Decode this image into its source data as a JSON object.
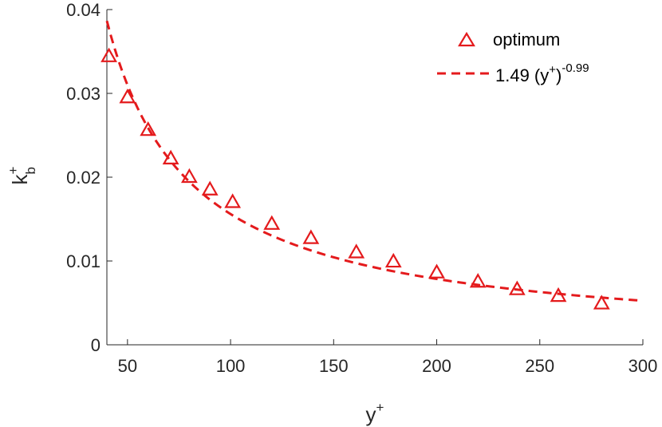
{
  "chart_data": {
    "type": "scatter",
    "xlabel": {
      "base": "y",
      "sup": "+"
    },
    "ylabel": {
      "base": "k",
      "sup": "+",
      "sub": "b"
    },
    "xlim": [
      40,
      300
    ],
    "ylim": [
      0,
      0.04
    ],
    "x_ticks": [
      50,
      100,
      150,
      200,
      250,
      300
    ],
    "y_ticks": [
      0,
      0.01,
      0.02,
      0.03,
      0.04
    ],
    "x_tick_labels": [
      "50",
      "100",
      "150",
      "200",
      "250",
      "300"
    ],
    "y_tick_labels": [
      "0",
      "0.01",
      "0.02",
      "0.03",
      "0.04"
    ],
    "grid": false,
    "legend_position": "top-right",
    "colors": {
      "series": "#e41a1c",
      "axis": "#262626"
    },
    "series": [
      {
        "name": "optimum",
        "style": "triangle-markers",
        "x": [
          41,
          50,
          60,
          71,
          80,
          90,
          101,
          120,
          139,
          161,
          179,
          200,
          220,
          239,
          259,
          280
        ],
        "y": [
          0.0344,
          0.0295,
          0.0256,
          0.0222,
          0.02,
          0.0185,
          0.017,
          0.0144,
          0.0127,
          0.011,
          0.0099,
          0.0086,
          0.0075,
          0.0066,
          0.0058,
          0.0049
        ]
      },
      {
        "name": "1.49 (y+)-0.99",
        "label_parts": {
          "coef": "1.49 (y",
          "sup1": "+",
          "close": ")",
          "sup2": "-0.99"
        },
        "style": "dashed-line",
        "formula": {
          "a": 1.49,
          "b": -0.99
        },
        "x_range": [
          40,
          300
        ]
      }
    ]
  }
}
